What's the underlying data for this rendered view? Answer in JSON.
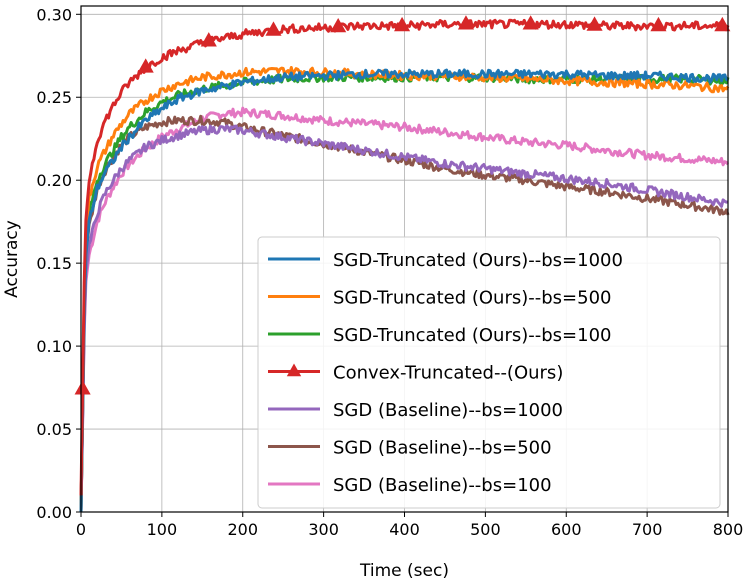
{
  "chart_data": {
    "type": "line",
    "xlabel": "Time (sec)",
    "ylabel": "Accuracy",
    "xlim": [
      0,
      800
    ],
    "ylim": [
      0.0,
      0.305
    ],
    "xticks": [
      0,
      100,
      200,
      300,
      400,
      500,
      600,
      700,
      800
    ],
    "xtick_labels": [
      "0",
      "100",
      "200",
      "300",
      "400",
      "500",
      "600",
      "700",
      "800"
    ],
    "yticks": [
      0.0,
      0.05,
      0.1,
      0.15,
      0.2,
      0.25,
      0.3
    ],
    "ytick_labels": [
      "0.00",
      "0.05",
      "0.10",
      "0.15",
      "0.20",
      "0.25",
      "0.30"
    ],
    "grid": true,
    "legend_position": "lower-right",
    "series": [
      {
        "name": "SGD-Truncated (Ours)--bs=1000",
        "color": "#1f77b4",
        "marker": "none",
        "x": [
          0,
          5,
          10,
          20,
          30,
          40,
          50,
          60,
          80,
          100,
          120,
          150,
          200,
          250,
          300,
          350,
          400,
          450,
          500,
          550,
          600,
          650,
          700,
          750,
          800
        ],
        "y": [
          0.0,
          0.15,
          0.175,
          0.195,
          0.205,
          0.212,
          0.22,
          0.226,
          0.236,
          0.243,
          0.249,
          0.254,
          0.259,
          0.262,
          0.263,
          0.264,
          0.264,
          0.264,
          0.264,
          0.264,
          0.264,
          0.263,
          0.263,
          0.262,
          0.261
        ]
      },
      {
        "name": "SGD-Truncated (Ours)--bs=500",
        "color": "#ff7f0e",
        "marker": "none",
        "x": [
          0,
          5,
          10,
          20,
          30,
          40,
          50,
          60,
          80,
          100,
          120,
          150,
          200,
          250,
          300,
          350,
          400,
          450,
          500,
          550,
          600,
          650,
          700,
          750,
          800
        ],
        "y": [
          0.0,
          0.16,
          0.19,
          0.208,
          0.218,
          0.227,
          0.234,
          0.24,
          0.248,
          0.254,
          0.258,
          0.262,
          0.265,
          0.266,
          0.265,
          0.264,
          0.263,
          0.263,
          0.262,
          0.261,
          0.26,
          0.259,
          0.258,
          0.257,
          0.255
        ]
      },
      {
        "name": "SGD-Truncated (Ours)--bs=100",
        "color": "#2ca02c",
        "marker": "none",
        "x": [
          0,
          5,
          10,
          20,
          30,
          40,
          50,
          60,
          80,
          100,
          120,
          150,
          200,
          250,
          300,
          350,
          400,
          450,
          500,
          550,
          600,
          650,
          700,
          750,
          800
        ],
        "y": [
          0.0,
          0.155,
          0.18,
          0.2,
          0.21,
          0.218,
          0.226,
          0.232,
          0.241,
          0.247,
          0.251,
          0.255,
          0.259,
          0.261,
          0.262,
          0.262,
          0.262,
          0.262,
          0.262,
          0.261,
          0.261,
          0.261,
          0.261,
          0.261,
          0.26
        ]
      },
      {
        "name": "Convex-Truncated--(Ours)",
        "color": "#d62728",
        "marker": "triangle",
        "marker_x": [
          2,
          80,
          158,
          238,
          318,
          397,
          476,
          556,
          635,
          714,
          793
        ],
        "x": [
          0,
          5,
          10,
          20,
          30,
          40,
          50,
          60,
          80,
          100,
          120,
          150,
          200,
          250,
          300,
          350,
          400,
          450,
          500,
          550,
          600,
          650,
          700,
          750,
          800
        ],
        "y": [
          0.01,
          0.17,
          0.2,
          0.224,
          0.236,
          0.245,
          0.253,
          0.259,
          0.268,
          0.274,
          0.278,
          0.283,
          0.288,
          0.291,
          0.292,
          0.293,
          0.293,
          0.294,
          0.294,
          0.294,
          0.294,
          0.293,
          0.293,
          0.293,
          0.293
        ]
      },
      {
        "name": "SGD (Baseline)--bs=1000",
        "color": "#9467bd",
        "marker": "none",
        "x": [
          0,
          5,
          10,
          20,
          30,
          40,
          50,
          60,
          80,
          100,
          120,
          150,
          175,
          200,
          250,
          300,
          350,
          400,
          450,
          500,
          550,
          600,
          650,
          700,
          750,
          800
        ],
        "y": [
          0.0,
          0.14,
          0.16,
          0.18,
          0.192,
          0.2,
          0.207,
          0.212,
          0.22,
          0.224,
          0.227,
          0.23,
          0.231,
          0.23,
          0.226,
          0.222,
          0.218,
          0.214,
          0.21,
          0.207,
          0.204,
          0.201,
          0.198,
          0.194,
          0.19,
          0.186
        ]
      },
      {
        "name": "SGD (Baseline)--bs=500",
        "color": "#8c564b",
        "marker": "none",
        "x": [
          0,
          5,
          10,
          20,
          30,
          40,
          50,
          60,
          80,
          100,
          120,
          150,
          175,
          200,
          250,
          300,
          350,
          400,
          450,
          500,
          550,
          600,
          650,
          700,
          750,
          800
        ],
        "y": [
          0.0,
          0.15,
          0.172,
          0.195,
          0.206,
          0.214,
          0.221,
          0.226,
          0.232,
          0.235,
          0.236,
          0.236,
          0.235,
          0.232,
          0.227,
          0.222,
          0.217,
          0.212,
          0.207,
          0.203,
          0.2,
          0.196,
          0.193,
          0.189,
          0.185,
          0.181
        ]
      },
      {
        "name": "SGD (Baseline)--bs=100",
        "color": "#e377c2",
        "marker": "none",
        "x": [
          0,
          5,
          10,
          20,
          30,
          40,
          50,
          60,
          80,
          100,
          120,
          150,
          175,
          200,
          250,
          300,
          350,
          400,
          450,
          500,
          550,
          600,
          650,
          700,
          750,
          800
        ],
        "y": [
          0.0,
          0.135,
          0.155,
          0.175,
          0.187,
          0.196,
          0.204,
          0.21,
          0.219,
          0.226,
          0.231,
          0.237,
          0.24,
          0.241,
          0.239,
          0.236,
          0.234,
          0.232,
          0.229,
          0.226,
          0.223,
          0.221,
          0.218,
          0.215,
          0.213,
          0.211
        ]
      }
    ]
  }
}
